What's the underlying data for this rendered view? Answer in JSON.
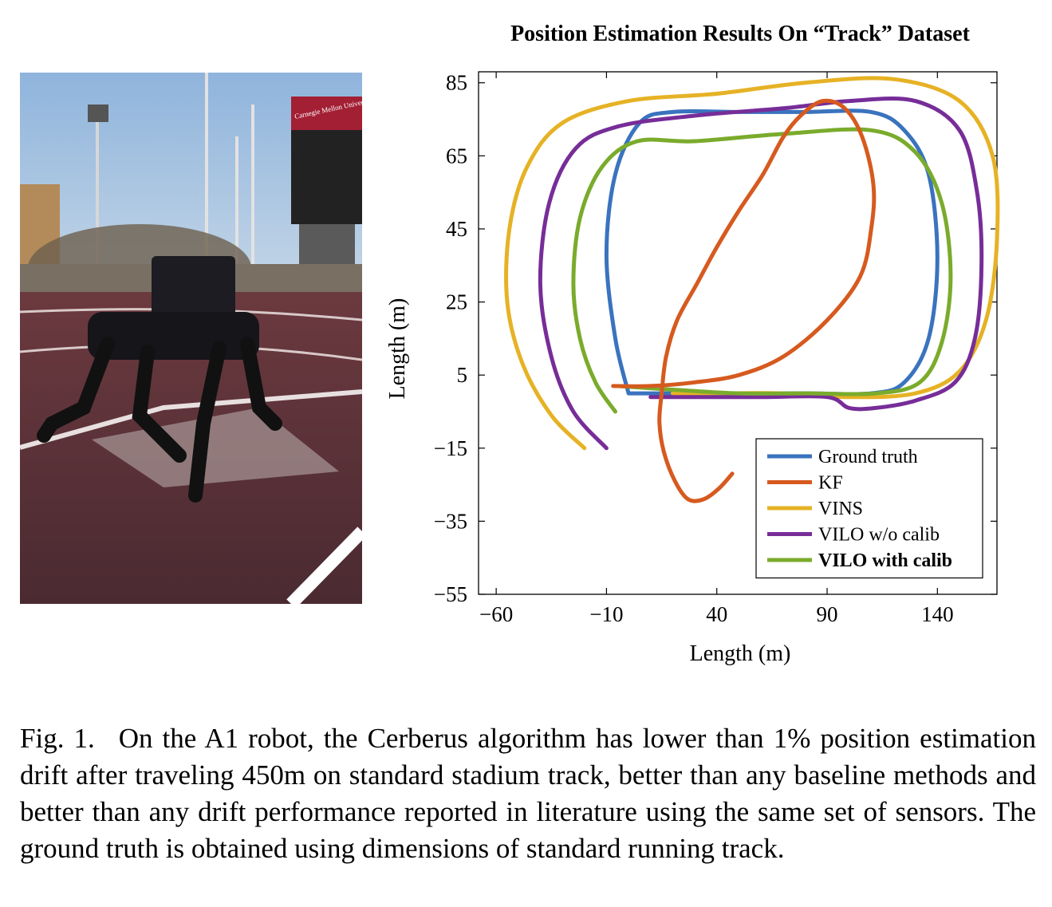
{
  "photo": {
    "banner_text": "Carnegie Mellon University",
    "subject": "robot-dog-icon"
  },
  "chart_data": {
    "type": "line",
    "title": "Position Estimation Results On “Track” Dataset",
    "xlabel": "Length (m)",
    "ylabel": "Length (m)",
    "xlim": [
      -68,
      167
    ],
    "ylim": [
      -55,
      88
    ],
    "xticks": [
      -60,
      -10,
      40,
      90,
      140
    ],
    "yticks": [
      85,
      65,
      45,
      25,
      5,
      -15,
      -35,
      -55
    ],
    "xtick_labels": [
      "−60",
      "−10",
      "40",
      "90",
      "140"
    ],
    "ytick_labels": [
      "85",
      "65",
      "45",
      "25",
      "5",
      "−15",
      "−35",
      "−55"
    ],
    "grid": false,
    "legend": "bottom-right",
    "series": [
      {
        "name": "Ground truth",
        "color": "#3a73be",
        "bold": false,
        "points": [
          [
            0,
            0
          ],
          [
            20,
            0
          ],
          [
            50,
            0
          ],
          [
            80,
            0
          ],
          [
            110,
            0
          ],
          [
            125,
            3
          ],
          [
            136,
            15
          ],
          [
            140,
            37
          ],
          [
            136,
            60
          ],
          [
            125,
            72
          ],
          [
            110,
            77
          ],
          [
            80,
            77
          ],
          [
            50,
            77
          ],
          [
            20,
            77
          ],
          [
            5,
            74
          ],
          [
            -6,
            60
          ],
          [
            -10,
            38
          ],
          [
            -6,
            15
          ],
          [
            0,
            0
          ]
        ]
      },
      {
        "name": "KF",
        "color": "#d65a1f",
        "bold": false,
        "points": [
          [
            -7,
            2
          ],
          [
            10,
            2
          ],
          [
            30,
            3
          ],
          [
            50,
            5
          ],
          [
            70,
            10
          ],
          [
            90,
            20
          ],
          [
            105,
            32
          ],
          [
            110,
            45
          ],
          [
            111,
            57
          ],
          [
            106,
            70
          ],
          [
            98,
            78
          ],
          [
            88,
            80
          ],
          [
            78,
            76
          ],
          [
            70,
            70
          ],
          [
            61,
            60
          ],
          [
            50,
            50
          ],
          [
            40,
            40
          ],
          [
            31,
            30
          ],
          [
            22,
            20
          ],
          [
            17,
            10
          ],
          [
            15,
            0
          ],
          [
            14,
            -8
          ],
          [
            16,
            -16
          ],
          [
            21,
            -24
          ],
          [
            27,
            -29
          ],
          [
            34,
            -29
          ],
          [
            41,
            -26
          ],
          [
            47,
            -22
          ]
        ]
      },
      {
        "name": "VINS",
        "color": "#e6b225",
        "bold": false,
        "points": [
          [
            -20,
            -15
          ],
          [
            -35,
            -6
          ],
          [
            -48,
            8
          ],
          [
            -55,
            25
          ],
          [
            -54,
            45
          ],
          [
            -46,
            62
          ],
          [
            -30,
            74
          ],
          [
            0,
            80
          ],
          [
            40,
            82
          ],
          [
            80,
            85
          ],
          [
            120,
            86
          ],
          [
            150,
            80
          ],
          [
            165,
            65
          ],
          [
            167,
            42
          ],
          [
            162,
            20
          ],
          [
            150,
            6
          ],
          [
            130,
            0
          ],
          [
            100,
            -1
          ],
          [
            70,
            0
          ],
          [
            40,
            0
          ],
          [
            20,
            0
          ]
        ]
      },
      {
        "name": "VILO w/o calib",
        "color": "#772d98",
        "bold": false,
        "points": [
          [
            -10,
            -15
          ],
          [
            -25,
            -5
          ],
          [
            -35,
            10
          ],
          [
            -40,
            30
          ],
          [
            -36,
            52
          ],
          [
            -24,
            67
          ],
          [
            -5,
            73
          ],
          [
            30,
            76
          ],
          [
            70,
            78
          ],
          [
            100,
            80
          ],
          [
            130,
            80
          ],
          [
            150,
            72
          ],
          [
            158,
            55
          ],
          [
            160,
            35
          ],
          [
            157,
            15
          ],
          [
            148,
            3
          ],
          [
            130,
            -2
          ],
          [
            112,
            -4
          ],
          [
            100,
            -4
          ],
          [
            90,
            -1
          ],
          [
            60,
            -1
          ],
          [
            30,
            -1
          ],
          [
            10,
            -1
          ]
        ]
      },
      {
        "name": "VILO with calib",
        "color": "#7aab2c",
        "bold": true,
        "points": [
          [
            -6,
            -5
          ],
          [
            -15,
            3
          ],
          [
            -22,
            15
          ],
          [
            -25,
            30
          ],
          [
            -22,
            48
          ],
          [
            -12,
            62
          ],
          [
            4,
            69
          ],
          [
            30,
            69
          ],
          [
            70,
            71
          ],
          [
            110,
            72
          ],
          [
            130,
            66
          ],
          [
            142,
            52
          ],
          [
            146,
            32
          ],
          [
            142,
            14
          ],
          [
            132,
            3
          ],
          [
            112,
            0
          ],
          [
            80,
            0
          ],
          [
            50,
            0
          ],
          [
            20,
            1
          ],
          [
            -5,
            2
          ]
        ]
      }
    ]
  },
  "caption": {
    "figure_label": "Fig. 1.",
    "text": "On the A1 robot, the Cerberus algorithm has lower than 1% position estimation drift after traveling 450m on standard stadium track, better than any baseline methods and better than any drift performance reported in literature using the same set of sensors. The ground truth is obtained using dimensions of standard running track."
  }
}
